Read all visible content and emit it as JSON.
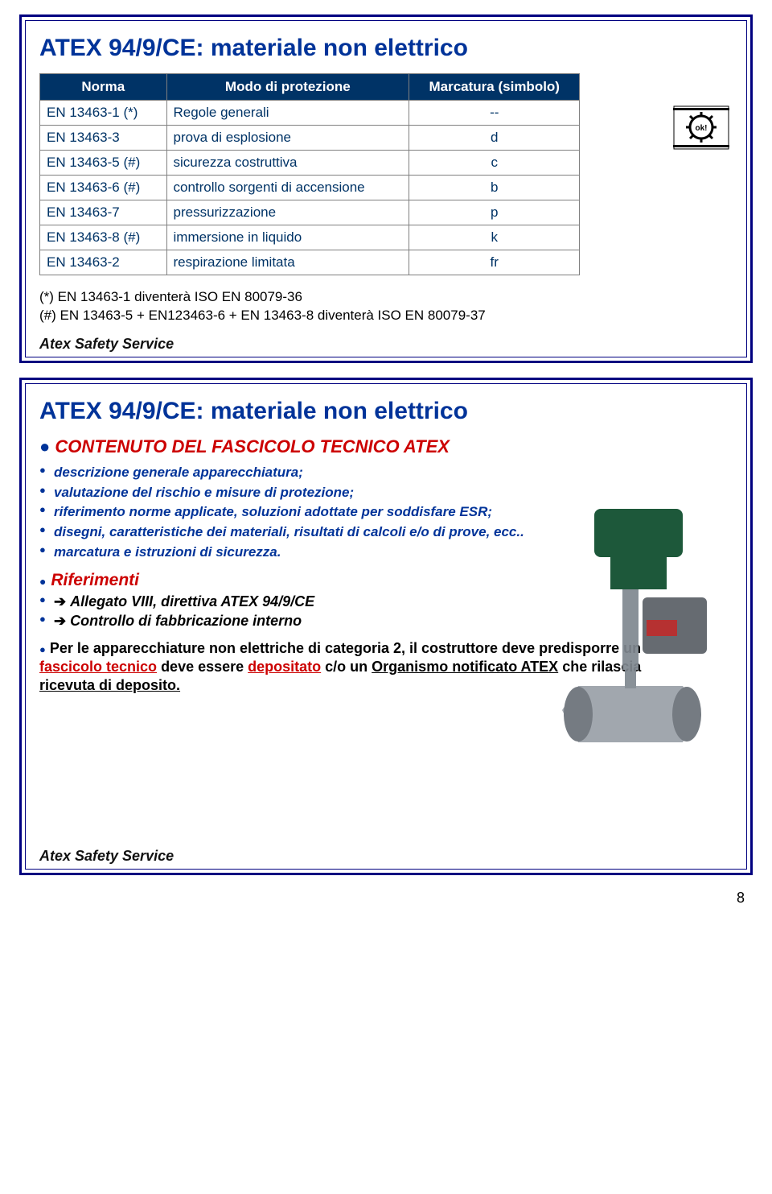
{
  "page_number": "8",
  "slide1": {
    "title": "ATEX 94/9/CE: materiale non elettrico",
    "table": {
      "columns": [
        "Norma",
        "Modo di protezione",
        "Marcatura (simbolo)"
      ],
      "rows": [
        [
          "EN 13463-1 (*)",
          "Regole generali",
          "--"
        ],
        [
          "EN 13463-3",
          "prova di esplosione",
          "d"
        ],
        [
          "EN 13463-5 (#)",
          "sicurezza costruttiva",
          "c"
        ],
        [
          "EN 13463-6 (#)",
          "controllo sorgenti di accensione",
          "b"
        ],
        [
          "EN 13463-7",
          "pressurizzazione",
          "p"
        ],
        [
          "EN 13463-8 (#)",
          "immersione in liquido",
          "k"
        ],
        [
          "EN 13463-2",
          "respirazione limitata",
          "fr"
        ]
      ],
      "header_bg": "#003366",
      "header_fg": "#ffffff",
      "cell_fg": "#003366",
      "border_color": "#808080"
    },
    "footnote1": "(*) EN 13463-1 diventerà ISO EN 80079-36",
    "footnote2": "(#) EN 13463-5 + EN123463-6 + EN 13463-8 diventerà ISO EN 80079-37",
    "logo_text": "Atex Safety Service",
    "gear_label": "ok!"
  },
  "slide2": {
    "title": "ATEX 94/9/CE: materiale non elettrico",
    "subtitle": "CONTENUTO DEL FASCICOLO TECNICO ATEX",
    "bullets": [
      "descrizione generale apparecchiatura;",
      "valutazione del rischio e misure di protezione;",
      "riferimento norme applicate, soluzioni adottate per soddisfare ESR;",
      "disegni, caratteristiche dei materiali, risultati di calcoli e/o di prove, ecc..",
      "marcatura e istruzioni di sicurezza."
    ],
    "riferimenti_head": "Riferimenti",
    "riferimenti": [
      "Allegato VIII, direttiva ATEX 94/9/CE",
      "Controllo di fabbricazione interno"
    ],
    "paragraph_pre": "Per le apparecchiature non elettriche di categoria 2, il costruttore deve predisporre un ",
    "paragraph_red1": "fascicolo tecnico",
    "paragraph_mid1": " deve essere ",
    "paragraph_red2": "depositato",
    "paragraph_mid2": " c/o un ",
    "paragraph_ul": "Organismo notificato ATEX",
    "paragraph_post": " che rilascia ",
    "paragraph_ul2": "ricevuta di deposito.",
    "logo_text": "Atex Safety Service"
  },
  "colors": {
    "frame": "#000080",
    "title_color": "#003399",
    "red": "#cc0000",
    "bullet_color": "#003399"
  }
}
